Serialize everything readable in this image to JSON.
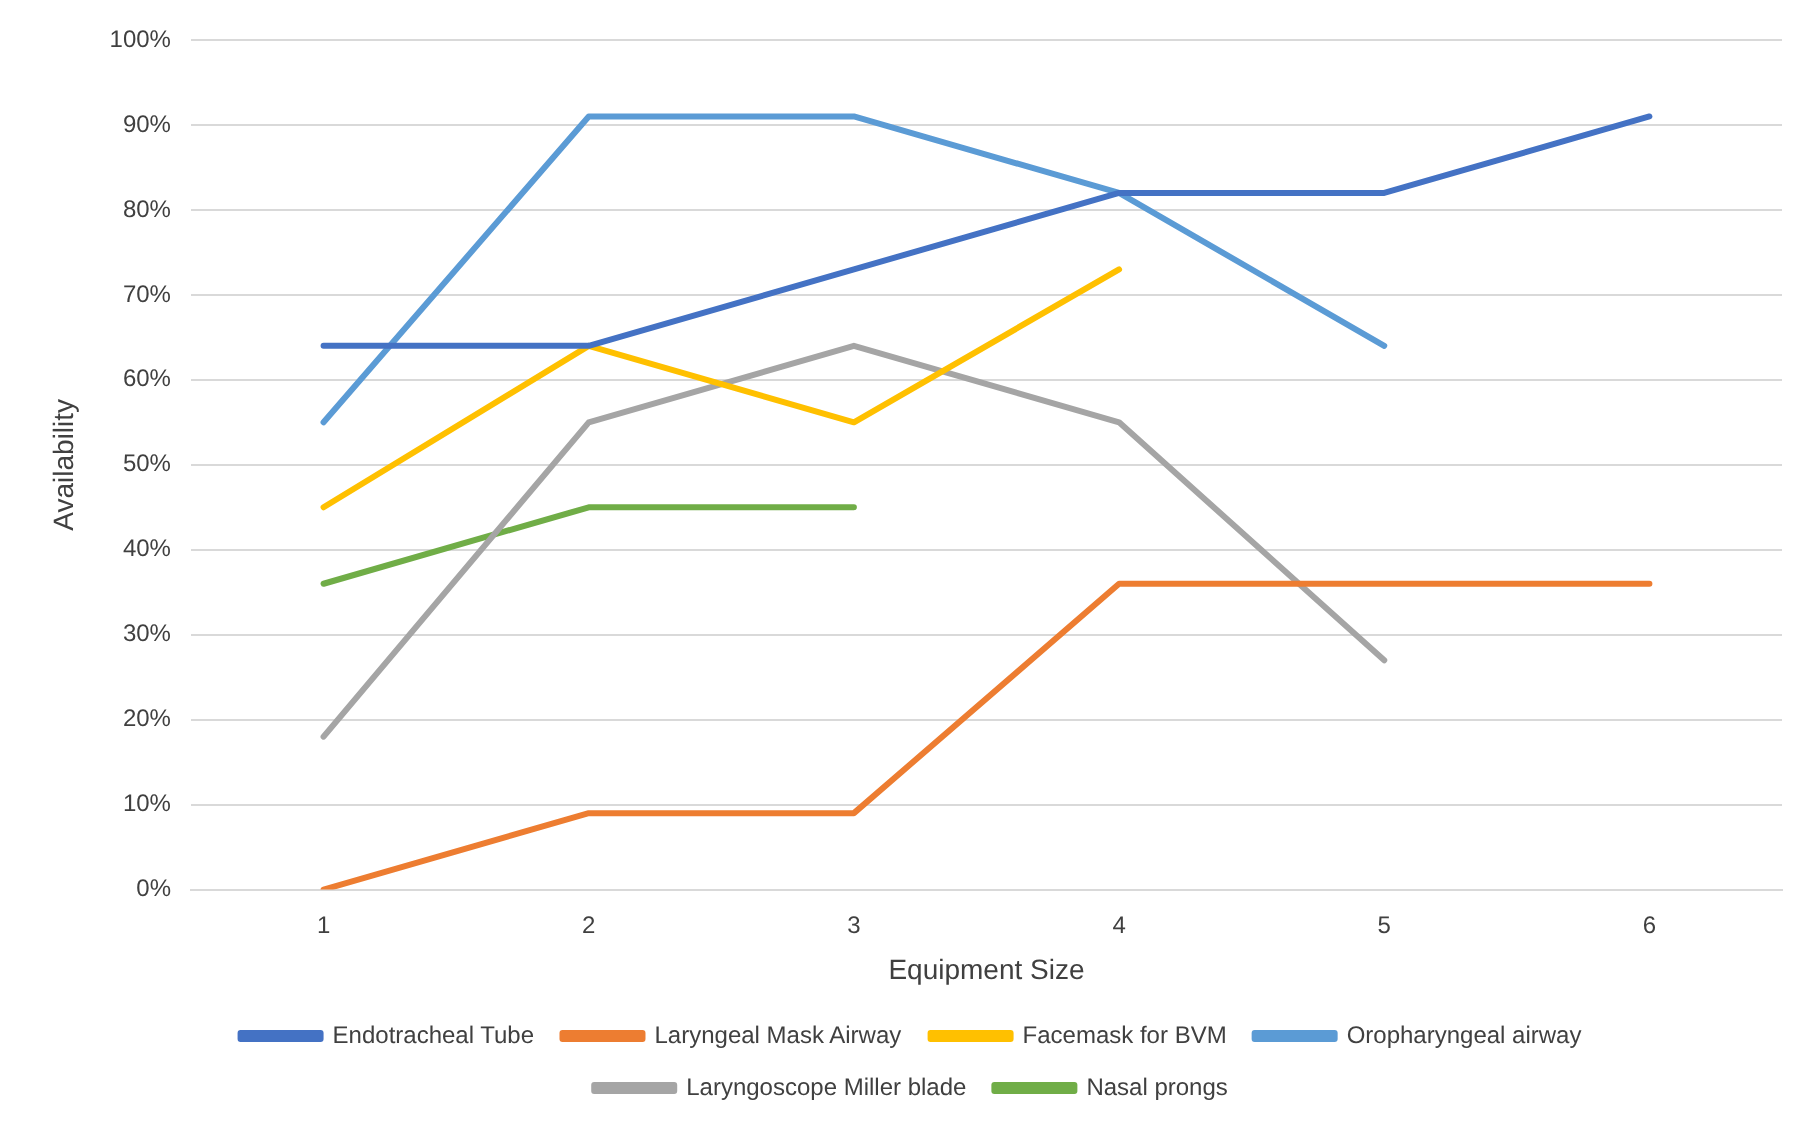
{
  "chart_data": {
    "type": "line",
    "xlabel": "Equipment Size",
    "ylabel": "Availability",
    "categories": [
      "1",
      "2",
      "3",
      "4",
      "5",
      "6"
    ],
    "series": [
      {
        "name": "Endotracheal Tube",
        "color": "#4472c4",
        "values": [
          64,
          64,
          73,
          82,
          82,
          91
        ]
      },
      {
        "name": "Laryngeal Mask Airway",
        "color": "#ed7d31",
        "values": [
          0,
          9,
          9,
          36,
          36,
          36
        ]
      },
      {
        "name": "Facemask for BVM",
        "color": "#ffc000",
        "values": [
          45,
          64,
          55,
          73,
          null,
          null
        ]
      },
      {
        "name": "Oropharyngeal airway",
        "color": "#5b9bd5",
        "values": [
          55,
          91,
          91,
          82,
          64,
          null
        ]
      },
      {
        "name": "Laryngoscope Miller blade",
        "color": "#a5a5a5",
        "values": [
          18,
          55,
          64,
          55,
          27,
          null
        ]
      },
      {
        "name": "Nasal prongs",
        "color": "#70ad47",
        "values": [
          36,
          45,
          45,
          null,
          null,
          null
        ]
      }
    ],
    "ylim": [
      0,
      100
    ],
    "yticks": [
      {
        "value": 0,
        "label": "0%"
      },
      {
        "value": 10,
        "label": "10%"
      },
      {
        "value": 20,
        "label": "20%"
      },
      {
        "value": 30,
        "label": "30%"
      },
      {
        "value": 40,
        "label": "40%"
      },
      {
        "value": 50,
        "label": "50%"
      },
      {
        "value": 60,
        "label": "60%"
      },
      {
        "value": 70,
        "label": "70%"
      },
      {
        "value": 80,
        "label": "80%"
      },
      {
        "value": 90,
        "label": "90%"
      },
      {
        "value": 100,
        "label": "100%"
      }
    ],
    "grid": "y",
    "legend": "bottom",
    "marker": "none",
    "line_style": "solid"
  }
}
